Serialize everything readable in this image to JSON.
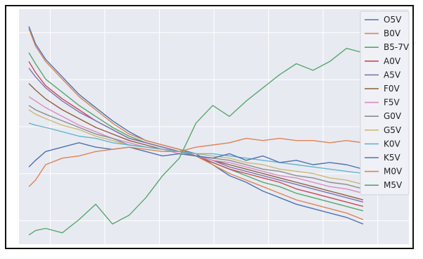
{
  "chart_data": {
    "type": "line",
    "title": "",
    "xlabel": "",
    "ylabel": "",
    "grid": true,
    "legend_placement": "top-right",
    "xlim": [
      0,
      1
    ],
    "ylim": [
      0,
      1
    ],
    "x_ticks_shown": false,
    "y_ticks_shown": false,
    "background_color": "#e8eaf2",
    "grid_color": "#ffffff",
    "series": [
      {
        "name": "O5V",
        "color": "#4c72b0",
        "x": [
          0.0,
          0.02,
          0.05,
          0.1,
          0.15,
          0.2,
          0.25,
          0.3,
          0.35,
          0.4,
          0.45,
          0.5,
          0.55,
          0.6,
          0.65,
          0.7,
          0.75,
          0.8,
          0.85,
          0.9,
          0.95,
          1.0
        ],
        "values": [
          0.96,
          0.88,
          0.81,
          0.73,
          0.65,
          0.59,
          0.53,
          0.48,
          0.44,
          0.42,
          0.4,
          0.38,
          0.33,
          0.28,
          0.25,
          0.21,
          0.18,
          0.15,
          0.13,
          0.11,
          0.09,
          0.06
        ]
      },
      {
        "name": "B0V",
        "color": "#dd8452",
        "x": [
          0.0,
          0.02,
          0.05,
          0.1,
          0.15,
          0.2,
          0.25,
          0.3,
          0.35,
          0.4,
          0.45,
          0.5,
          0.55,
          0.6,
          0.65,
          0.7,
          0.75,
          0.8,
          0.85,
          0.9,
          0.95,
          1.0
        ],
        "values": [
          0.95,
          0.87,
          0.8,
          0.72,
          0.64,
          0.58,
          0.52,
          0.47,
          0.44,
          0.42,
          0.4,
          0.37,
          0.33,
          0.29,
          0.26,
          0.23,
          0.2,
          0.17,
          0.15,
          0.13,
          0.11,
          0.08
        ]
      },
      {
        "name": "B5-7V",
        "color": "#55a868",
        "x": [
          0.0,
          0.02,
          0.05,
          0.1,
          0.15,
          0.2,
          0.25,
          0.3,
          0.35,
          0.4,
          0.45,
          0.5,
          0.55,
          0.6,
          0.65,
          0.7,
          0.75,
          0.8,
          0.85,
          0.9,
          0.95,
          1.0
        ],
        "values": [
          0.84,
          0.79,
          0.72,
          0.66,
          0.6,
          0.55,
          0.5,
          0.46,
          0.43,
          0.41,
          0.39,
          0.37,
          0.34,
          0.31,
          0.28,
          0.25,
          0.23,
          0.2,
          0.18,
          0.16,
          0.14,
          0.12
        ]
      },
      {
        "name": "A0V",
        "color": "#c44e52",
        "x": [
          0.0,
          0.02,
          0.05,
          0.1,
          0.15,
          0.2,
          0.25,
          0.3,
          0.35,
          0.4,
          0.45,
          0.5,
          0.55,
          0.6,
          0.65,
          0.7,
          0.75,
          0.8,
          0.85,
          0.9,
          0.95,
          1.0
        ],
        "values": [
          0.8,
          0.75,
          0.69,
          0.63,
          0.58,
          0.53,
          0.49,
          0.45,
          0.43,
          0.41,
          0.39,
          0.37,
          0.34,
          0.31,
          0.29,
          0.27,
          0.25,
          0.22,
          0.2,
          0.18,
          0.16,
          0.14
        ]
      },
      {
        "name": "A5V",
        "color": "#8172b3",
        "x": [
          0.0,
          0.02,
          0.05,
          0.1,
          0.15,
          0.2,
          0.25,
          0.3,
          0.35,
          0.4,
          0.45,
          0.5,
          0.55,
          0.6,
          0.65,
          0.7,
          0.75,
          0.8,
          0.85,
          0.9,
          0.95,
          1.0
        ],
        "values": [
          0.77,
          0.73,
          0.68,
          0.62,
          0.57,
          0.53,
          0.49,
          0.45,
          0.43,
          0.41,
          0.39,
          0.37,
          0.35,
          0.32,
          0.3,
          0.28,
          0.26,
          0.24,
          0.22,
          0.2,
          0.18,
          0.16
        ]
      },
      {
        "name": "F0V",
        "color": "#8c613c",
        "x": [
          0.0,
          0.02,
          0.05,
          0.1,
          0.15,
          0.2,
          0.25,
          0.3,
          0.35,
          0.4,
          0.45,
          0.5,
          0.55,
          0.6,
          0.65,
          0.7,
          0.75,
          0.8,
          0.85,
          0.9,
          0.95,
          1.0
        ],
        "values": [
          0.7,
          0.67,
          0.63,
          0.58,
          0.54,
          0.5,
          0.47,
          0.44,
          0.42,
          0.4,
          0.39,
          0.37,
          0.35,
          0.33,
          0.31,
          0.29,
          0.27,
          0.25,
          0.23,
          0.21,
          0.19,
          0.17
        ]
      },
      {
        "name": "F5V",
        "color": "#da8bc3",
        "x": [
          0.0,
          0.02,
          0.05,
          0.1,
          0.15,
          0.2,
          0.25,
          0.3,
          0.35,
          0.4,
          0.45,
          0.5,
          0.55,
          0.6,
          0.65,
          0.7,
          0.75,
          0.8,
          0.85,
          0.9,
          0.95,
          1.0
        ],
        "values": [
          0.64,
          0.62,
          0.59,
          0.55,
          0.51,
          0.48,
          0.45,
          0.43,
          0.41,
          0.4,
          0.38,
          0.37,
          0.35,
          0.34,
          0.32,
          0.3,
          0.28,
          0.27,
          0.25,
          0.23,
          0.22,
          0.2
        ]
      },
      {
        "name": "G0V",
        "color": "#8c8c8c",
        "x": [
          0.0,
          0.02,
          0.05,
          0.1,
          0.15,
          0.2,
          0.25,
          0.3,
          0.35,
          0.4,
          0.45,
          0.5,
          0.55,
          0.6,
          0.65,
          0.7,
          0.75,
          0.8,
          0.85,
          0.9,
          0.95,
          1.0
        ],
        "values": [
          0.6,
          0.58,
          0.56,
          0.53,
          0.5,
          0.47,
          0.45,
          0.42,
          0.41,
          0.4,
          0.39,
          0.37,
          0.36,
          0.35,
          0.33,
          0.31,
          0.3,
          0.28,
          0.27,
          0.25,
          0.24,
          0.22
        ]
      },
      {
        "name": "G5V",
        "color": "#ccb974",
        "x": [
          0.0,
          0.02,
          0.05,
          0.1,
          0.15,
          0.2,
          0.25,
          0.3,
          0.35,
          0.4,
          0.45,
          0.5,
          0.55,
          0.6,
          0.65,
          0.7,
          0.75,
          0.8,
          0.85,
          0.9,
          0.95,
          1.0
        ],
        "values": [
          0.58,
          0.56,
          0.54,
          0.51,
          0.49,
          0.46,
          0.44,
          0.42,
          0.41,
          0.4,
          0.39,
          0.38,
          0.37,
          0.36,
          0.34,
          0.33,
          0.31,
          0.3,
          0.29,
          0.27,
          0.26,
          0.24
        ]
      },
      {
        "name": "K0V",
        "color": "#64b5cd",
        "x": [
          0.0,
          0.02,
          0.05,
          0.1,
          0.15,
          0.2,
          0.25,
          0.3,
          0.35,
          0.4,
          0.45,
          0.5,
          0.55,
          0.6,
          0.65,
          0.7,
          0.75,
          0.8,
          0.85,
          0.9,
          0.95,
          1.0
        ],
        "values": [
          0.52,
          0.51,
          0.5,
          0.48,
          0.46,
          0.45,
          0.43,
          0.42,
          0.41,
          0.4,
          0.39,
          0.38,
          0.38,
          0.37,
          0.36,
          0.35,
          0.34,
          0.33,
          0.32,
          0.31,
          0.3,
          0.29
        ]
      },
      {
        "name": "K5V",
        "color": "#4c72b0",
        "x": [
          0.0,
          0.02,
          0.05,
          0.1,
          0.15,
          0.2,
          0.25,
          0.3,
          0.35,
          0.4,
          0.45,
          0.5,
          0.55,
          0.6,
          0.65,
          0.7,
          0.75,
          0.8,
          0.85,
          0.9,
          0.95,
          1.0
        ],
        "values": [
          0.32,
          0.35,
          0.39,
          0.41,
          0.43,
          0.41,
          0.4,
          0.41,
          0.39,
          0.37,
          0.38,
          0.37,
          0.36,
          0.38,
          0.35,
          0.37,
          0.34,
          0.35,
          0.33,
          0.34,
          0.33,
          0.31
        ]
      },
      {
        "name": "M0V",
        "color": "#dd8452",
        "x": [
          0.0,
          0.02,
          0.05,
          0.1,
          0.15,
          0.2,
          0.25,
          0.3,
          0.35,
          0.4,
          0.45,
          0.5,
          0.55,
          0.6,
          0.65,
          0.7,
          0.75,
          0.8,
          0.85,
          0.9,
          0.95,
          1.0
        ],
        "values": [
          0.23,
          0.26,
          0.33,
          0.36,
          0.37,
          0.39,
          0.4,
          0.41,
          0.4,
          0.39,
          0.39,
          0.41,
          0.42,
          0.43,
          0.45,
          0.44,
          0.45,
          0.44,
          0.44,
          0.43,
          0.44,
          0.43
        ]
      },
      {
        "name": "M5V",
        "color": "#55a868",
        "x": [
          0.0,
          0.02,
          0.05,
          0.1,
          0.15,
          0.2,
          0.25,
          0.3,
          0.35,
          0.4,
          0.45,
          0.5,
          0.55,
          0.6,
          0.65,
          0.7,
          0.75,
          0.8,
          0.85,
          0.9,
          0.95,
          1.0
        ],
        "values": [
          0.01,
          0.03,
          0.04,
          0.02,
          0.08,
          0.15,
          0.06,
          0.1,
          0.18,
          0.28,
          0.36,
          0.52,
          0.6,
          0.55,
          0.62,
          0.68,
          0.74,
          0.79,
          0.76,
          0.8,
          0.86,
          0.84
        ]
      }
    ]
  }
}
